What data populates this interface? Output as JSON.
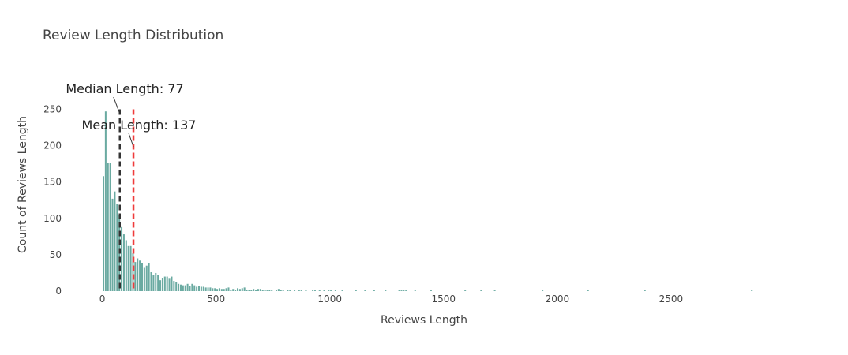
{
  "chart_data": {
    "type": "bar",
    "title": "Review Length Distribution",
    "xlabel": "Reviews Length",
    "ylabel": "Count of Reviews Length",
    "xlim": [
      -172,
      3000
    ],
    "ylim": [
      0,
      270
    ],
    "x_ticks": [
      0,
      500,
      1000,
      1500,
      2000,
      2500
    ],
    "y_ticks": [
      0,
      50,
      100,
      150,
      200,
      250
    ],
    "bar_color": "#6aaaa1",
    "bin_width": 10,
    "bars": [
      {
        "x": 5,
        "y": 158
      },
      {
        "x": 15,
        "y": 247
      },
      {
        "x": 25,
        "y": 176
      },
      {
        "x": 35,
        "y": 176
      },
      {
        "x": 45,
        "y": 127
      },
      {
        "x": 55,
        "y": 137
      },
      {
        "x": 65,
        "y": 120
      },
      {
        "x": 75,
        "y": 105
      },
      {
        "x": 85,
        "y": 88
      },
      {
        "x": 95,
        "y": 78
      },
      {
        "x": 105,
        "y": 70
      },
      {
        "x": 115,
        "y": 62
      },
      {
        "x": 125,
        "y": 62
      },
      {
        "x": 135,
        "y": 52
      },
      {
        "x": 145,
        "y": 40
      },
      {
        "x": 155,
        "y": 45
      },
      {
        "x": 165,
        "y": 42
      },
      {
        "x": 175,
        "y": 38
      },
      {
        "x": 185,
        "y": 32
      },
      {
        "x": 195,
        "y": 35
      },
      {
        "x": 205,
        "y": 38
      },
      {
        "x": 215,
        "y": 26
      },
      {
        "x": 225,
        "y": 22
      },
      {
        "x": 235,
        "y": 25
      },
      {
        "x": 245,
        "y": 22
      },
      {
        "x": 255,
        "y": 15
      },
      {
        "x": 265,
        "y": 18
      },
      {
        "x": 275,
        "y": 20
      },
      {
        "x": 285,
        "y": 20
      },
      {
        "x": 295,
        "y": 17
      },
      {
        "x": 305,
        "y": 20
      },
      {
        "x": 315,
        "y": 14
      },
      {
        "x": 325,
        "y": 12
      },
      {
        "x": 335,
        "y": 10
      },
      {
        "x": 345,
        "y": 9
      },
      {
        "x": 355,
        "y": 8
      },
      {
        "x": 365,
        "y": 8
      },
      {
        "x": 375,
        "y": 10
      },
      {
        "x": 385,
        "y": 7
      },
      {
        "x": 395,
        "y": 10
      },
      {
        "x": 405,
        "y": 8
      },
      {
        "x": 415,
        "y": 6
      },
      {
        "x": 425,
        "y": 7
      },
      {
        "x": 435,
        "y": 6
      },
      {
        "x": 445,
        "y": 6
      },
      {
        "x": 455,
        "y": 5
      },
      {
        "x": 465,
        "y": 5
      },
      {
        "x": 475,
        "y": 5
      },
      {
        "x": 485,
        "y": 4
      },
      {
        "x": 495,
        "y": 4
      },
      {
        "x": 505,
        "y": 3
      },
      {
        "x": 515,
        "y": 4
      },
      {
        "x": 525,
        "y": 3
      },
      {
        "x": 535,
        "y": 3
      },
      {
        "x": 545,
        "y": 4
      },
      {
        "x": 555,
        "y": 5
      },
      {
        "x": 565,
        "y": 2
      },
      {
        "x": 575,
        "y": 3
      },
      {
        "x": 585,
        "y": 2
      },
      {
        "x": 595,
        "y": 4
      },
      {
        "x": 605,
        "y": 3
      },
      {
        "x": 615,
        "y": 4
      },
      {
        "x": 625,
        "y": 5
      },
      {
        "x": 635,
        "y": 2
      },
      {
        "x": 645,
        "y": 2
      },
      {
        "x": 655,
        "y": 2
      },
      {
        "x": 665,
        "y": 3
      },
      {
        "x": 675,
        "y": 2
      },
      {
        "x": 685,
        "y": 3
      },
      {
        "x": 695,
        "y": 3
      },
      {
        "x": 705,
        "y": 2
      },
      {
        "x": 715,
        "y": 2
      },
      {
        "x": 725,
        "y": 1
      },
      {
        "x": 735,
        "y": 2
      },
      {
        "x": 745,
        "y": 1
      },
      {
        "x": 765,
        "y": 1
      },
      {
        "x": 775,
        "y": 3
      },
      {
        "x": 785,
        "y": 2
      },
      {
        "x": 795,
        "y": 1
      },
      {
        "x": 815,
        "y": 2
      },
      {
        "x": 825,
        "y": 1
      },
      {
        "x": 845,
        "y": 1
      },
      {
        "x": 865,
        "y": 1
      },
      {
        "x": 875,
        "y": 1
      },
      {
        "x": 895,
        "y": 1
      },
      {
        "x": 925,
        "y": 1
      },
      {
        "x": 935,
        "y": 1
      },
      {
        "x": 955,
        "y": 1
      },
      {
        "x": 975,
        "y": 1
      },
      {
        "x": 995,
        "y": 1
      },
      {
        "x": 1005,
        "y": 1
      },
      {
        "x": 1025,
        "y": 1
      },
      {
        "x": 1055,
        "y": 1
      },
      {
        "x": 1115,
        "y": 1
      },
      {
        "x": 1155,
        "y": 1
      },
      {
        "x": 1195,
        "y": 1
      },
      {
        "x": 1245,
        "y": 1
      },
      {
        "x": 1305,
        "y": 1
      },
      {
        "x": 1315,
        "y": 1
      },
      {
        "x": 1325,
        "y": 1
      },
      {
        "x": 1335,
        "y": 1
      },
      {
        "x": 1375,
        "y": 1
      },
      {
        "x": 1445,
        "y": 1
      },
      {
        "x": 1595,
        "y": 1
      },
      {
        "x": 1665,
        "y": 1
      },
      {
        "x": 1725,
        "y": 1
      },
      {
        "x": 1935,
        "y": 1
      },
      {
        "x": 2135,
        "y": 1
      },
      {
        "x": 2385,
        "y": 1
      },
      {
        "x": 2855,
        "y": 1
      }
    ],
    "median": {
      "value": 77,
      "label": "Median Length: 77",
      "color": "#333333"
    },
    "mean": {
      "value": 137,
      "label": "Mean Length: 137",
      "color": "#ef3b3b"
    }
  }
}
